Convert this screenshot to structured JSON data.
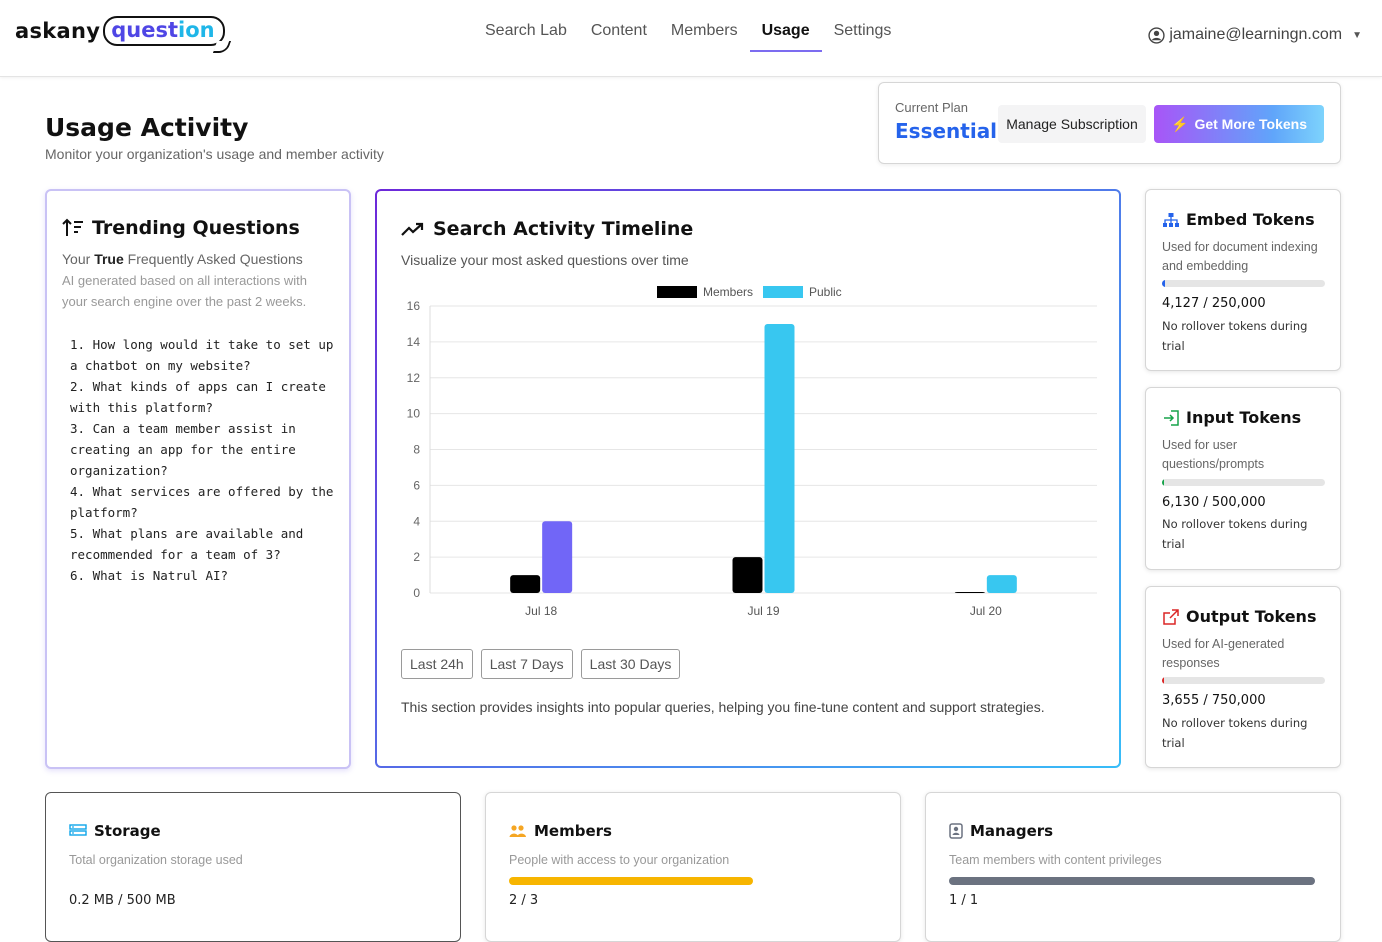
{
  "brand": {
    "part1": "askany",
    "part2a": "quest",
    "part2b": "ion"
  },
  "nav": {
    "items": [
      "Search Lab",
      "Content",
      "Members",
      "Usage",
      "Settings"
    ],
    "active": "Usage"
  },
  "user": {
    "email": "jamaine@learningn.com"
  },
  "header": {
    "title": "Usage Activity",
    "subtitle": "Monitor your organization's usage and member activity"
  },
  "plan": {
    "label": "Current Plan",
    "name": "Essentials",
    "manage_label": "Manage Subscription",
    "tokens_label": "Get More Tokens"
  },
  "trending": {
    "title": "Trending Questions",
    "desc_prefix": "Your ",
    "desc_bold": "True",
    "desc_suffix": " Frequently Asked Questions",
    "desc2": "AI generated based on all interactions with your search engine over the past 2 weeks.",
    "questions": [
      "1. How long would it take to set up a chatbot on my website?",
      "2. What kinds of apps can I create with this platform?",
      "3. Can a team member assist in creating an app for the entire organization?",
      "4. What services are offered by the platform?",
      "5. What plans are available and recommended for a team of 3?",
      "6. What is Natrul AI?"
    ]
  },
  "timeline": {
    "title": "Search Activity Timeline",
    "subtitle": "Visualize your most asked questions over time",
    "ranges": [
      "Last 24h",
      "Last 7 Days",
      "Last 30 Days"
    ],
    "footnote": "This section provides insights into popular queries, helping you fine-tune content and support strategies."
  },
  "chart_data": {
    "type": "bar",
    "categories": [
      "Jul 18",
      "Jul 19",
      "Jul 20"
    ],
    "series": [
      {
        "name": "Members",
        "color": "#000000",
        "values": [
          1,
          2,
          0
        ]
      },
      {
        "name": "Public",
        "color": "#38c7f0",
        "values": [
          4,
          15,
          1
        ],
        "highlight": {
          "index": 0,
          "color": "#7166f7"
        }
      }
    ],
    "ylim": [
      0,
      16
    ],
    "yticks": [
      0,
      2,
      4,
      6,
      8,
      10,
      12,
      14,
      16
    ],
    "legend": "top-center",
    "grid": true
  },
  "tokens": [
    {
      "title": "Embed Tokens",
      "icon": "sitemap-icon",
      "color": "#2563eb",
      "desc": "Used for document indexing and embedding",
      "count": "4,127 / 250,000",
      "fraction": 0.0165,
      "note": "No rollover tokens during trial"
    },
    {
      "title": "Input Tokens",
      "icon": "sign-in-icon",
      "color": "#16a34a",
      "desc": "Used for user questions/prompts",
      "count": "6,130 / 500,000",
      "fraction": 0.0123,
      "note": "No rollover tokens during trial"
    },
    {
      "title": "Output Tokens",
      "icon": "external-link-icon",
      "color": "#dc2626",
      "desc": "Used for AI-generated responses",
      "count": "3,655 / 750,000",
      "fraction": 0.0049,
      "note": "No rollover tokens during trial"
    }
  ],
  "bottom": [
    {
      "title": "Storage",
      "icon": "server-icon",
      "color": "#0ea5e9",
      "desc": "Total organization storage used",
      "value": "0.2 MB / 500 MB",
      "fraction": 0.0004,
      "bar_color": "#0ea5e9"
    },
    {
      "title": "Members",
      "icon": "users-icon",
      "color": "#f5a623",
      "desc": "People with access to your organization",
      "value": "2 / 3",
      "fraction": 0.667,
      "bar_color": "#f7b500"
    },
    {
      "title": "Managers",
      "icon": "id-badge-icon",
      "color": "#6b7280",
      "desc": "Team members with content privileges",
      "value": "1 / 1",
      "fraction": 1.0,
      "bar_color": "#6b7280"
    }
  ]
}
